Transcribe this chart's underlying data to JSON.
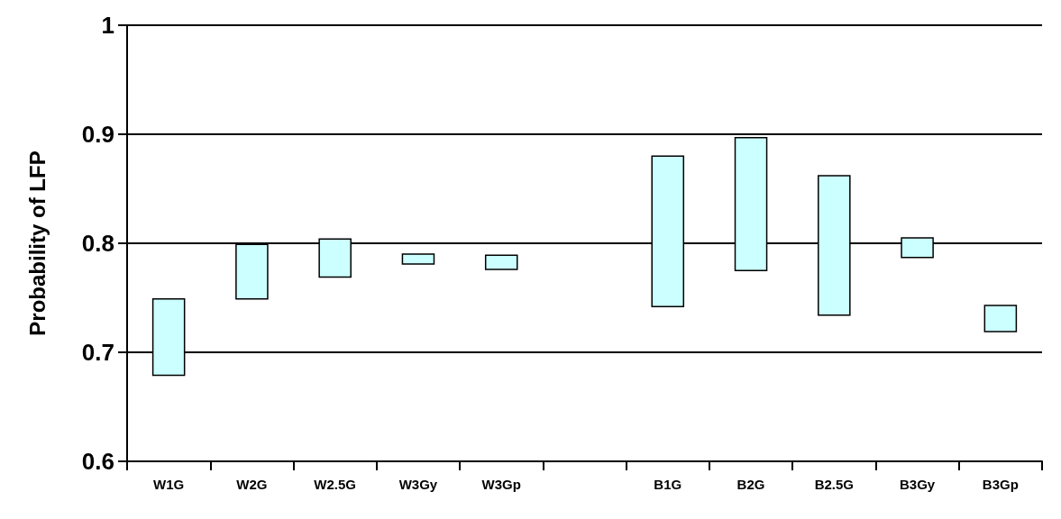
{
  "chart_data": {
    "type": "bar",
    "ylabel": "Probability of LFP",
    "categories": [
      "W1G",
      "W2G",
      "W2.5G",
      "W3Gy",
      "W3Gp",
      null,
      "B1G",
      "B2G",
      "B2.5G",
      "B3Gy",
      "B3Gp"
    ],
    "base": [
      0.679,
      0.749,
      0.769,
      0.781,
      0.776,
      null,
      0.742,
      0.775,
      0.734,
      0.787,
      0.719
    ],
    "values": [
      0.07,
      0.05,
      0.035,
      0.009,
      0.013,
      null,
      0.138,
      0.122,
      0.128,
      0.018,
      0.024
    ],
    "color": "#ccffff",
    "ylim": [
      0.6,
      1
    ],
    "yticks": [
      0.6,
      0.7,
      0.8,
      0.9,
      1
    ],
    "grid": "y",
    "legend": false
  }
}
